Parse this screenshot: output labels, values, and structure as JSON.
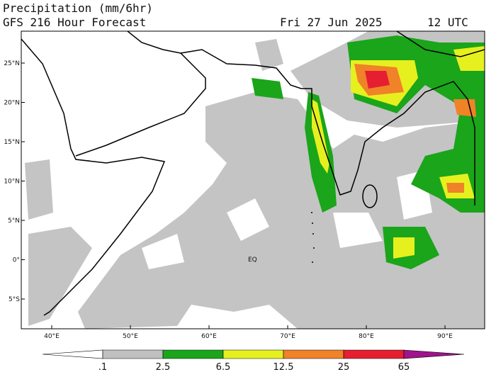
{
  "header": {
    "title": "Precipitation (mm/6hr)",
    "subtitle": "GFS 216 Hour Forecast",
    "date": "Fri 27 Jun 2025",
    "time": "12 UTC"
  },
  "axes": {
    "lat_labels": [
      "25°N",
      "20°N",
      "15°N",
      "10°N",
      "5°N",
      "0°",
      "5°S"
    ],
    "lon_labels": [
      "40°E",
      "50°E",
      "60°E",
      "70°E",
      "80°E",
      "90°E"
    ]
  },
  "annotations": [
    "EQ"
  ],
  "legend": {
    "labels": [
      ".1",
      "2.5",
      "6.5",
      "12.5",
      "25",
      "65"
    ],
    "colors": [
      "#ffffff",
      "#c0c0c0",
      "#1aa51a",
      "#e6f01e",
      "#f08228",
      "#e61e32",
      "#a0148c"
    ]
  }
}
